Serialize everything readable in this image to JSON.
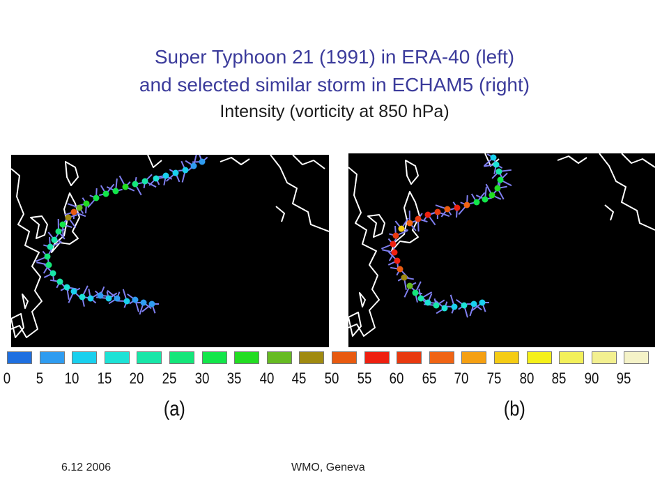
{
  "title": {
    "line1": "Super Typhoon 21 (1991) in ERA-40 (left)",
    "line2": "and selected similar storm in ECHAM5 (right)",
    "line3": "Intensity (vorticity at 850 hPa)"
  },
  "panels": [
    {
      "label": "(a)"
    },
    {
      "label": "(b)"
    }
  ],
  "colorbar": {
    "ticks": [
      "0",
      "5",
      "10",
      "15",
      "20",
      "25",
      "30",
      "35",
      "40",
      "45",
      "50",
      "55",
      "60",
      "65",
      "70",
      "75",
      "80",
      "85",
      "90",
      "95"
    ],
    "colors": [
      "#1e6fe0",
      "#2f9cf0",
      "#19d0ee",
      "#1de2d6",
      "#18e6a8",
      "#14e67a",
      "#12e64a",
      "#22dd22",
      "#66bb22",
      "#a08a10",
      "#e85a10",
      "#ee2010",
      "#e83a10",
      "#f06414",
      "#f5a012",
      "#f5cc14",
      "#f5f01a",
      "#f3f05a",
      "#f3f090",
      "#f5f3c8"
    ]
  },
  "footer": {
    "date": "6.12 2006",
    "location": "WMO, Geneva"
  }
}
